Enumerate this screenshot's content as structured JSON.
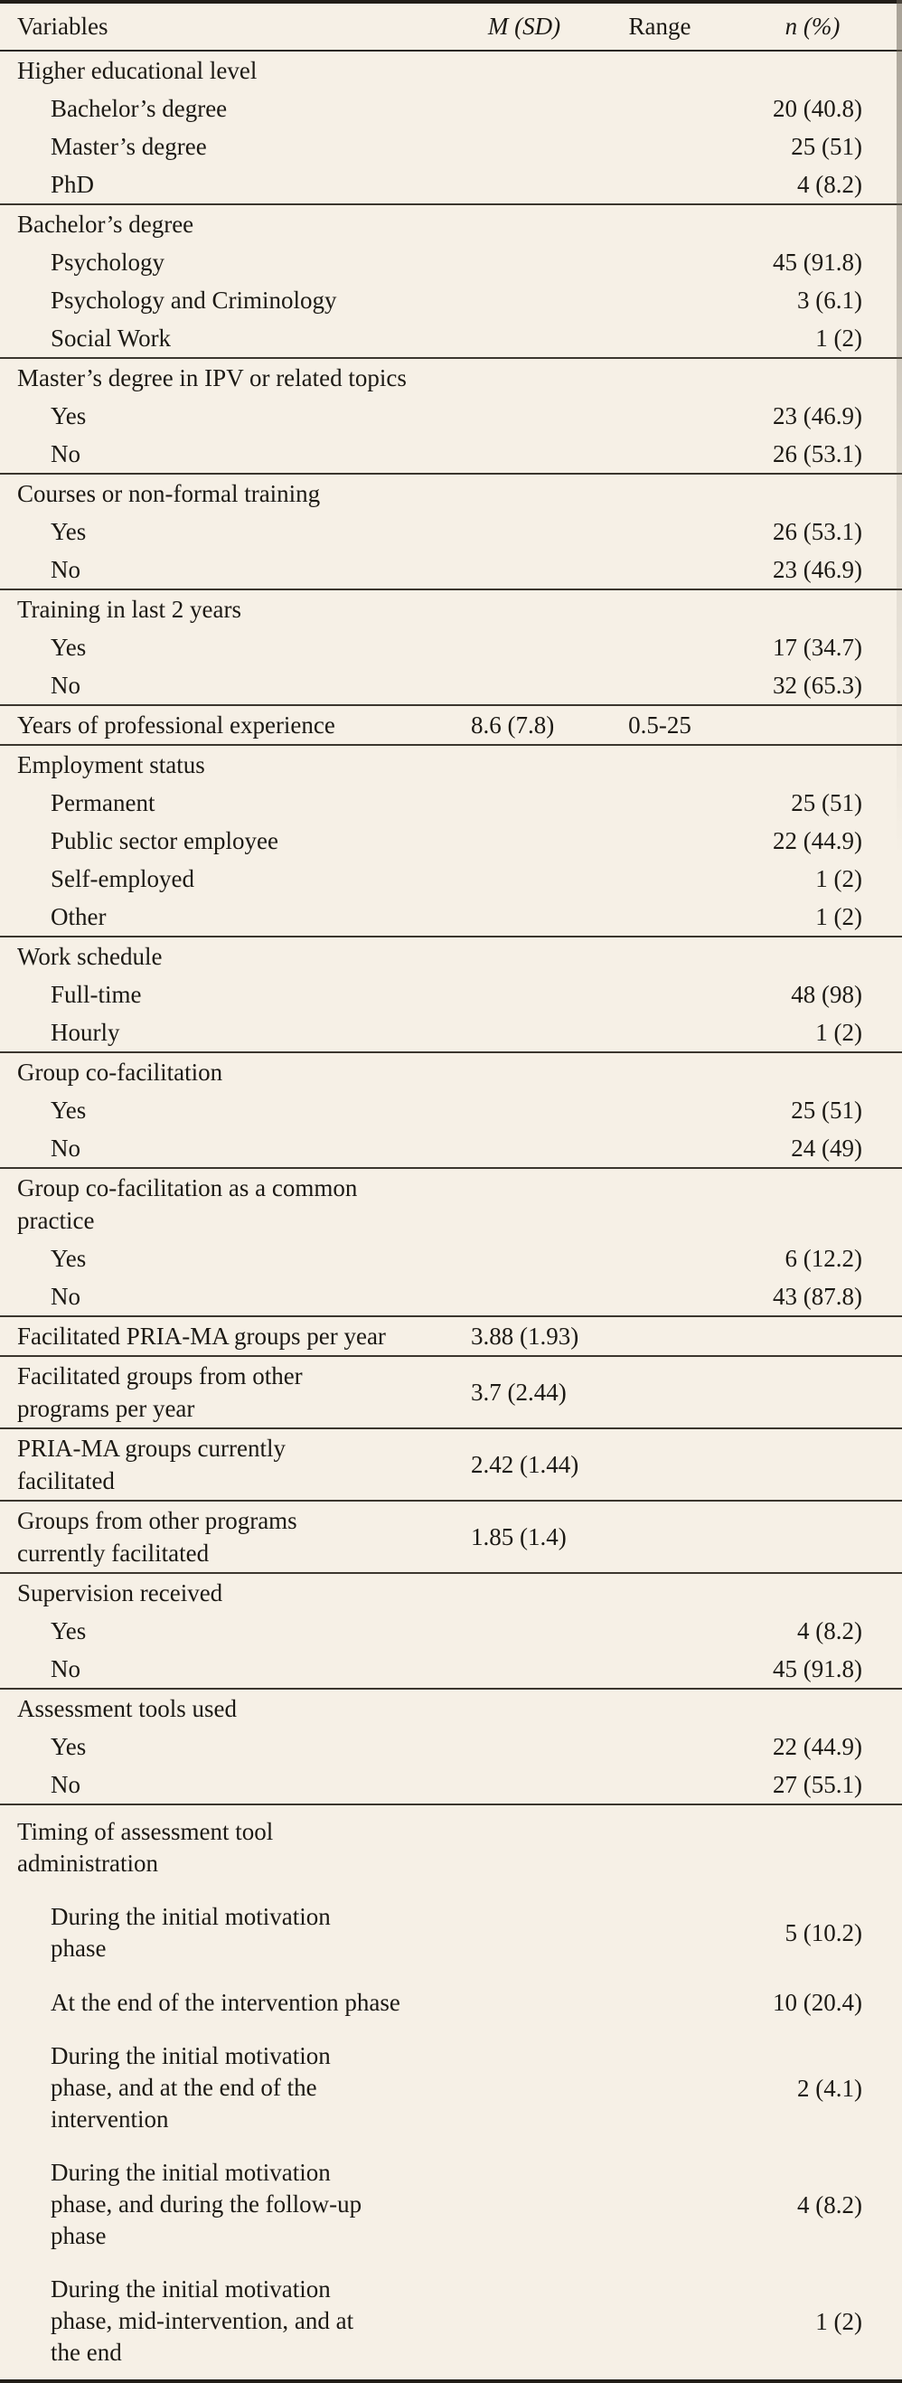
{
  "colors": {
    "background": "#f6f0e6",
    "text": "#1c1914",
    "rule_heavy": "#211d18",
    "rule_light": "#3b362e"
  },
  "table": {
    "columns": {
      "variables": "Variables",
      "m_sd": "M (SD)",
      "range": "Range",
      "n_pct": "n (%)"
    },
    "sections": [
      {
        "header": {
          "label": "Higher educational level"
        },
        "rows": [
          {
            "label": "Bachelor’s degree",
            "n_pct": "20 (40.8)"
          },
          {
            "label": "Master’s degree",
            "n_pct": "25 (51)"
          },
          {
            "label": "PhD",
            "n_pct": "4 (8.2)"
          }
        ]
      },
      {
        "header": {
          "label": "Bachelor’s degree"
        },
        "rows": [
          {
            "label": "Psychology",
            "n_pct": "45 (91.8)"
          },
          {
            "label": "Psychology and Criminology",
            "n_pct": "3 (6.1)"
          },
          {
            "label": "Social Work",
            "n_pct": "1 (2)"
          }
        ]
      },
      {
        "header": {
          "label": "Master’s degree in IPV or related topics"
        },
        "rows": [
          {
            "label": "Yes",
            "n_pct": "23 (46.9)"
          },
          {
            "label": "No",
            "n_pct": "26 (53.1)"
          }
        ]
      },
      {
        "header": {
          "label": "Courses or non-formal training"
        },
        "rows": [
          {
            "label": "Yes",
            "n_pct": "26 (53.1)"
          },
          {
            "label": "No",
            "n_pct": "23 (46.9)"
          }
        ]
      },
      {
        "header": {
          "label": "Training in last 2 years"
        },
        "rows": [
          {
            "label": "Yes",
            "n_pct": "17 (34.7)"
          },
          {
            "label": "No",
            "n_pct": "32 (65.3)"
          }
        ]
      },
      {
        "header": {
          "label": "Years of professional experience",
          "m_sd": "8.6 (7.8)",
          "range": "0.5-25"
        },
        "rows": []
      },
      {
        "header": {
          "label": "Employment status"
        },
        "rows": [
          {
            "label": "Permanent",
            "n_pct": "25 (51)"
          },
          {
            "label": "Public sector employee",
            "n_pct": "22 (44.9)"
          },
          {
            "label": "Self-employed",
            "n_pct": "1 (2)"
          },
          {
            "label": "Other",
            "n_pct": "1 (2)"
          }
        ]
      },
      {
        "header": {
          "label": "Work schedule"
        },
        "rows": [
          {
            "label": "Full-time",
            "n_pct": "48 (98)"
          },
          {
            "label": "Hourly",
            "n_pct": "1 (2)"
          }
        ]
      },
      {
        "header": {
          "label": "Group co-facilitation"
        },
        "rows": [
          {
            "label": "Yes",
            "n_pct": "25 (51)"
          },
          {
            "label": "No",
            "n_pct": "24 (49)"
          }
        ]
      },
      {
        "header": {
          "label": [
            "Group co-facilitation as a common",
            "practice"
          ]
        },
        "rows": [
          {
            "label": "Yes",
            "n_pct": "6 (12.2)"
          },
          {
            "label": "No",
            "n_pct": "43 (87.8)"
          }
        ]
      },
      {
        "header": {
          "label": "Facilitated PRIA-MA groups per year",
          "m_sd": "3.88 (1.93)"
        },
        "rows": []
      },
      {
        "header": {
          "label": [
            "Facilitated groups from other",
            "programs per year"
          ],
          "m_sd": "3.7 (2.44)"
        },
        "rows": []
      },
      {
        "header": {
          "label": [
            "PRIA-MA groups currently",
            "facilitated"
          ],
          "m_sd": "2.42 (1.44)"
        },
        "rows": []
      },
      {
        "header": {
          "label": [
            "Groups from other programs",
            "currently facilitated"
          ],
          "m_sd": "1.85 (1.4)"
        },
        "rows": []
      },
      {
        "header": {
          "label": "Supervision received"
        },
        "rows": [
          {
            "label": "Yes",
            "n_pct": "4 (8.2)"
          },
          {
            "label": "No",
            "n_pct": "45 (91.8)"
          }
        ]
      },
      {
        "header": {
          "label": "Assessment tools used"
        },
        "rows": [
          {
            "label": "Yes",
            "n_pct": "22 (44.9)"
          },
          {
            "label": "No",
            "n_pct": "27 (55.1)"
          }
        ]
      },
      {
        "header": {
          "label": [
            "Timing of assessment tool",
            "administration"
          ]
        },
        "rows": [
          {
            "label": [
              "During the initial motivation",
              "phase"
            ],
            "n_pct": "5 (10.2)"
          },
          {
            "label": "At the end of the intervention phase",
            "n_pct": "10 (20.4)"
          },
          {
            "label": [
              "During the initial motivation",
              "phase, and at the end of the",
              "intervention"
            ],
            "n_pct": "2 (4.1)"
          },
          {
            "label": [
              "During the initial motivation",
              "phase, and during the follow-up",
              "phase"
            ],
            "n_pct": "4 (8.2)"
          },
          {
            "label": [
              "During the initial motivation",
              "phase, mid-intervention, and at",
              "the end"
            ],
            "n_pct": "1 (2)"
          }
        ]
      }
    ]
  }
}
